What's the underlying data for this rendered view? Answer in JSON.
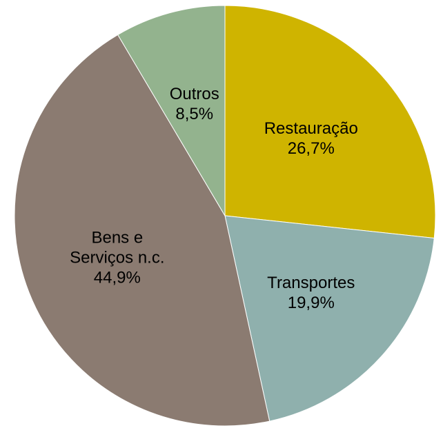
{
  "chart_data": {
    "type": "pie",
    "categories": [
      "Restauração",
      "Transportes",
      "Bens e Serviços n.c.",
      "Outros"
    ],
    "values": [
      26.7,
      19.9,
      44.9,
      8.5
    ],
    "value_labels": [
      "26,7%",
      "19,9%",
      "44,9%",
      "8,5%"
    ],
    "colors": [
      "#cfb400",
      "#8fb0ad",
      "#8b7b71",
      "#93b38e"
    ]
  }
}
